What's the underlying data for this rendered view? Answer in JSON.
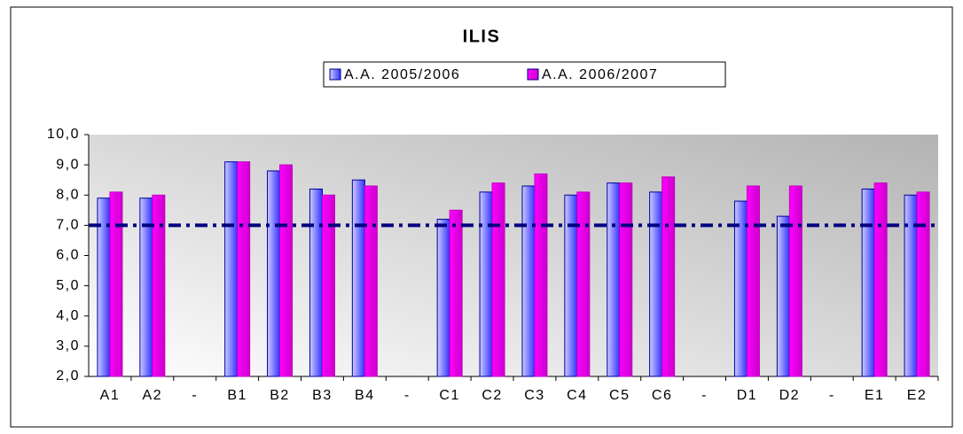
{
  "chart_data": {
    "type": "bar",
    "title": "ILIS",
    "categories": [
      "A1",
      "A2",
      "-",
      "B1",
      "B2",
      "B3",
      "B4",
      "-",
      "C1",
      "C2",
      "C3",
      "C4",
      "C5",
      "C6",
      "-",
      "D1",
      "D2",
      "-",
      "E1",
      "E2"
    ],
    "series": [
      {
        "name": "A.A. 2005/2006",
        "color": "#3333ff",
        "values": [
          7.9,
          7.9,
          null,
          9.1,
          8.8,
          8.2,
          8.5,
          null,
          7.2,
          8.1,
          8.3,
          8.0,
          8.4,
          8.1,
          null,
          7.8,
          7.3,
          null,
          8.2,
          8.0
        ]
      },
      {
        "name": "A.A. 2006/2007",
        "color": "#ff00ff",
        "values": [
          8.1,
          8.0,
          null,
          9.1,
          9.0,
          8.0,
          8.3,
          null,
          7.5,
          8.4,
          8.7,
          8.1,
          8.4,
          8.6,
          null,
          8.3,
          8.3,
          null,
          8.4,
          8.1
        ]
      }
    ],
    "reference_line": 7,
    "ylim": [
      2,
      10
    ],
    "yticks": [
      {
        "value": 2,
        "label": "2,0"
      },
      {
        "value": 3,
        "label": "3,0"
      },
      {
        "value": 4,
        "label": "4,0"
      },
      {
        "value": 5,
        "label": "5,0"
      },
      {
        "value": 6,
        "label": "6,0"
      },
      {
        "value": 7,
        "label": "7,0"
      },
      {
        "value": 8,
        "label": "8,0"
      },
      {
        "value": 9,
        "label": "9,0"
      },
      {
        "value": 10,
        "label": "10,0"
      }
    ],
    "legend": "top"
  }
}
